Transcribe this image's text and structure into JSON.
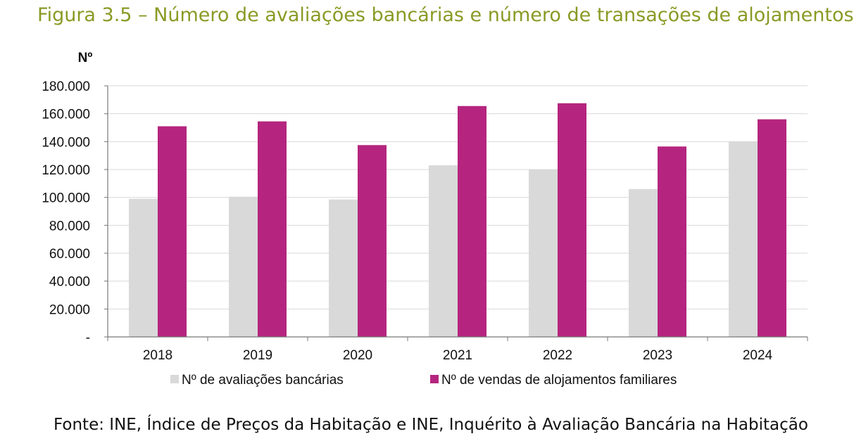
{
  "title": "Figura 3.5 – Número de avaliações bancárias e número de transações de alojamentos",
  "source": "Fonte: INE, Índice de Preços da Habitação e INE, Inquérito à Avaliação Bancária na Habitação",
  "chart_data": {
    "type": "bar",
    "title": "Figura 3.5 – Número de avaliações bancárias e número de transações de alojamentos",
    "ylabel": "Nº",
    "xlabel": "",
    "ylim": [
      0,
      180000
    ],
    "yticks": [
      {
        "value": 0,
        "label": "-"
      },
      {
        "value": 20000,
        "label": "20.000"
      },
      {
        "value": 40000,
        "label": "40.000"
      },
      {
        "value": 60000,
        "label": "60.000"
      },
      {
        "value": 80000,
        "label": "80.000"
      },
      {
        "value": 100000,
        "label": "100.000"
      },
      {
        "value": 120000,
        "label": "120.000"
      },
      {
        "value": 140000,
        "label": "140.000"
      },
      {
        "value": 160000,
        "label": "160.000"
      },
      {
        "value": 180000,
        "label": "180.000"
      }
    ],
    "categories": [
      "2018",
      "2019",
      "2020",
      "2021",
      "2022",
      "2023",
      "2024"
    ],
    "series": [
      {
        "name": "Nº de avaliações bancárias",
        "color": "#d9d9d9",
        "values": [
          99000,
          100500,
          98500,
          123000,
          120000,
          106000,
          140000
        ]
      },
      {
        "name": "Nº de vendas de alojamentos familiares",
        "color": "#b5257f",
        "values": [
          151000,
          154500,
          137500,
          165500,
          167500,
          136500,
          156000
        ]
      }
    ],
    "grid": true,
    "legend": "bottom"
  }
}
